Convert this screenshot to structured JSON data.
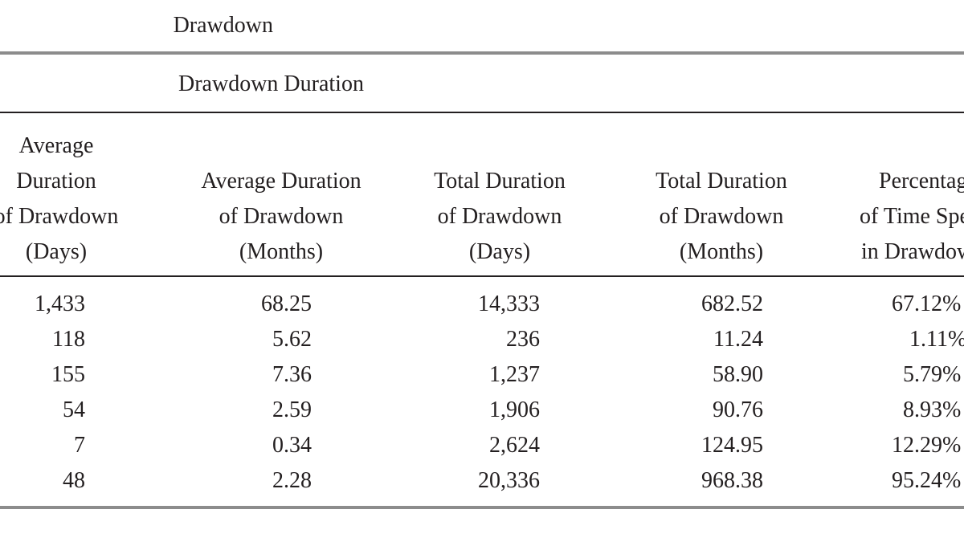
{
  "caption": "Drawdown",
  "group_header": "Drawdown Duration",
  "columns": [
    {
      "header_lines": [
        "Average",
        "Duration",
        "of Drawdown",
        "(Days)"
      ],
      "values": [
        "1,433",
        "118",
        "155",
        "54",
        "7",
        "48"
      ]
    },
    {
      "header_lines": [
        "Average Duration",
        "of Drawdown",
        "(Months)"
      ],
      "values": [
        "68.25",
        "5.62",
        "7.36",
        "2.59",
        "0.34",
        "2.28"
      ]
    },
    {
      "header_lines": [
        "Total Duration",
        "of Drawdown",
        "(Days)"
      ],
      "values": [
        "14,333",
        "236",
        "1,237",
        "1,906",
        "2,624",
        "20,336"
      ]
    },
    {
      "header_lines": [
        "Total Duration",
        "of Drawdown",
        "(Months)"
      ],
      "values": [
        "682.52",
        "11.24",
        "58.90",
        "90.76",
        "124.95",
        "968.38"
      ]
    },
    {
      "header_lines": [
        "Percentage",
        "of Time Spent",
        "in Drawdown"
      ],
      "values": [
        "67.12%",
        "1.11%",
        "5.79%",
        "8.93%",
        "12.29%",
        "95.24%"
      ]
    }
  ]
}
